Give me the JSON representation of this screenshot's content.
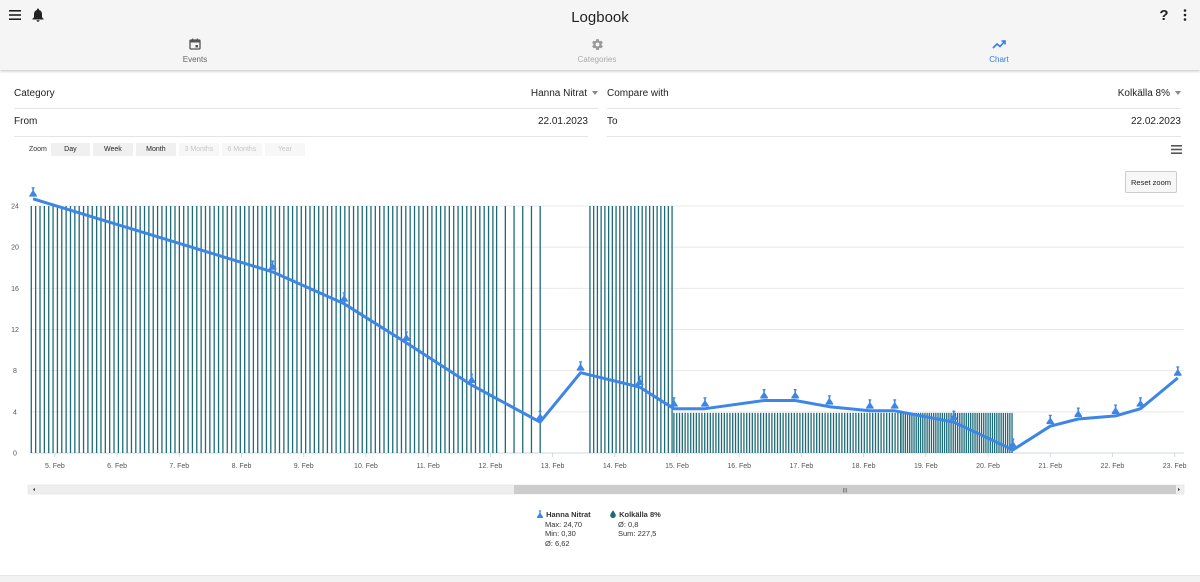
{
  "app": {
    "title": "Logbook"
  },
  "tabs": [
    {
      "label": "Events",
      "icon": "calendar-icon"
    },
    {
      "label": "Categories",
      "icon": "gear-icon"
    },
    {
      "label": "Chart",
      "icon": "trending-up-icon"
    }
  ],
  "form": {
    "category_label": "Category",
    "category_value": "Hanna Nitrat",
    "compare_label": "Compare with",
    "compare_value": "Kolkälla 8%",
    "from_label": "From",
    "from_value": "22.01.2023",
    "to_label": "To",
    "to_value": "22.02.2023"
  },
  "zoom": {
    "label": "Zoom",
    "buttons": [
      "Day",
      "Week",
      "Month",
      "3 Months",
      "6 Months",
      "Year"
    ]
  },
  "reset_zoom": "Reset zoom",
  "colors": {
    "accent": "#2f7fe8",
    "line": "#3d86e6",
    "bars": "#1e6b78"
  },
  "chart_data": {
    "type": "line",
    "ylim": [
      0,
      24
    ],
    "yticks": [
      "0",
      "4",
      "8",
      "12",
      "16",
      "20",
      "24"
    ],
    "xticks": [
      "5. Feb",
      "6. Feb",
      "7. Feb",
      "8. Feb",
      "9. Feb",
      "10. Feb",
      "11. Feb",
      "12. Feb",
      "13. Feb",
      "14. Feb",
      "15. Feb",
      "16. Feb",
      "17. Feb",
      "18. Feb",
      "19. Feb",
      "20. Feb",
      "21. Feb",
      "22. Feb",
      "23. Feb"
    ],
    "xrange": [
      4.6,
      23.15
    ],
    "series": [
      {
        "name": "Hanna Nitrat",
        "type": "line",
        "points": [
          [
            4.65,
            24.7
          ],
          [
            8.5,
            17.6
          ],
          [
            9.65,
            14.5
          ],
          [
            10.65,
            10.7
          ],
          [
            11.7,
            6.6
          ],
          [
            12.8,
            3.0
          ],
          [
            13.45,
            7.8
          ],
          [
            14.4,
            6.4
          ],
          [
            14.95,
            4.3
          ],
          [
            15.45,
            4.3
          ],
          [
            16.4,
            5.1
          ],
          [
            16.9,
            5.1
          ],
          [
            17.45,
            4.5
          ],
          [
            18.1,
            4.1
          ],
          [
            18.5,
            4.1
          ],
          [
            19.45,
            3.0
          ],
          [
            20.4,
            0.3
          ],
          [
            21.0,
            2.6
          ],
          [
            21.45,
            3.3
          ],
          [
            22.05,
            3.6
          ],
          [
            22.45,
            4.3
          ],
          [
            23.05,
            7.3
          ]
        ],
        "legend_stats": [
          "Max: 24,70",
          "Min: 0,30",
          "Ø: 6,62"
        ]
      },
      {
        "name": "Kolkälla 8%",
        "type": "column",
        "segments": [
          {
            "start": 4.62,
            "end": 12.1,
            "step": 0.07,
            "value": 24
          },
          {
            "start": 12.1,
            "end": 12.85,
            "step": 0.14,
            "value": 24
          },
          {
            "start": 13.6,
            "end": 14.95,
            "step": 0.06,
            "value": 24
          },
          {
            "start": 14.95,
            "end": 18.6,
            "step": 0.045,
            "value": 3.9
          },
          {
            "start": 18.6,
            "end": 20.4,
            "step": 0.035,
            "value": 3.9
          }
        ],
        "legend_stats": [
          "Ø: 0,8",
          "Sum: 227,5"
        ]
      }
    ]
  },
  "scrollbar": {
    "grip": "III"
  }
}
